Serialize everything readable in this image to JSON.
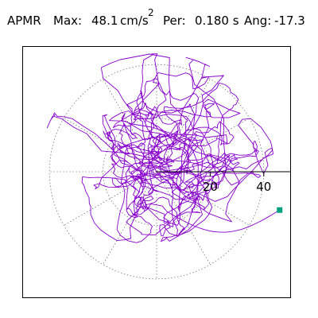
{
  "header": {
    "metric": "APMR",
    "max_label": "Max:",
    "max_value": "48.1",
    "max_unit": "cm/s",
    "max_unit_exp": "2",
    "period_label": "Per:",
    "period_value": "0.180 s",
    "angle_label": "Ang:",
    "angle_value": "-17.3"
  },
  "chart_data": {
    "type": "polar",
    "radial_ticks": [
      20,
      40
    ],
    "radial_tick_labels": [
      "20",
      "40"
    ],
    "rmax": 40,
    "grid": "dotted",
    "line_color": "#8800cc",
    "marker_color": "#00a080",
    "trace_seed": 7,
    "trace_points": 1400,
    "peak": {
      "r": 48.1,
      "angle_deg": -17.3
    }
  }
}
